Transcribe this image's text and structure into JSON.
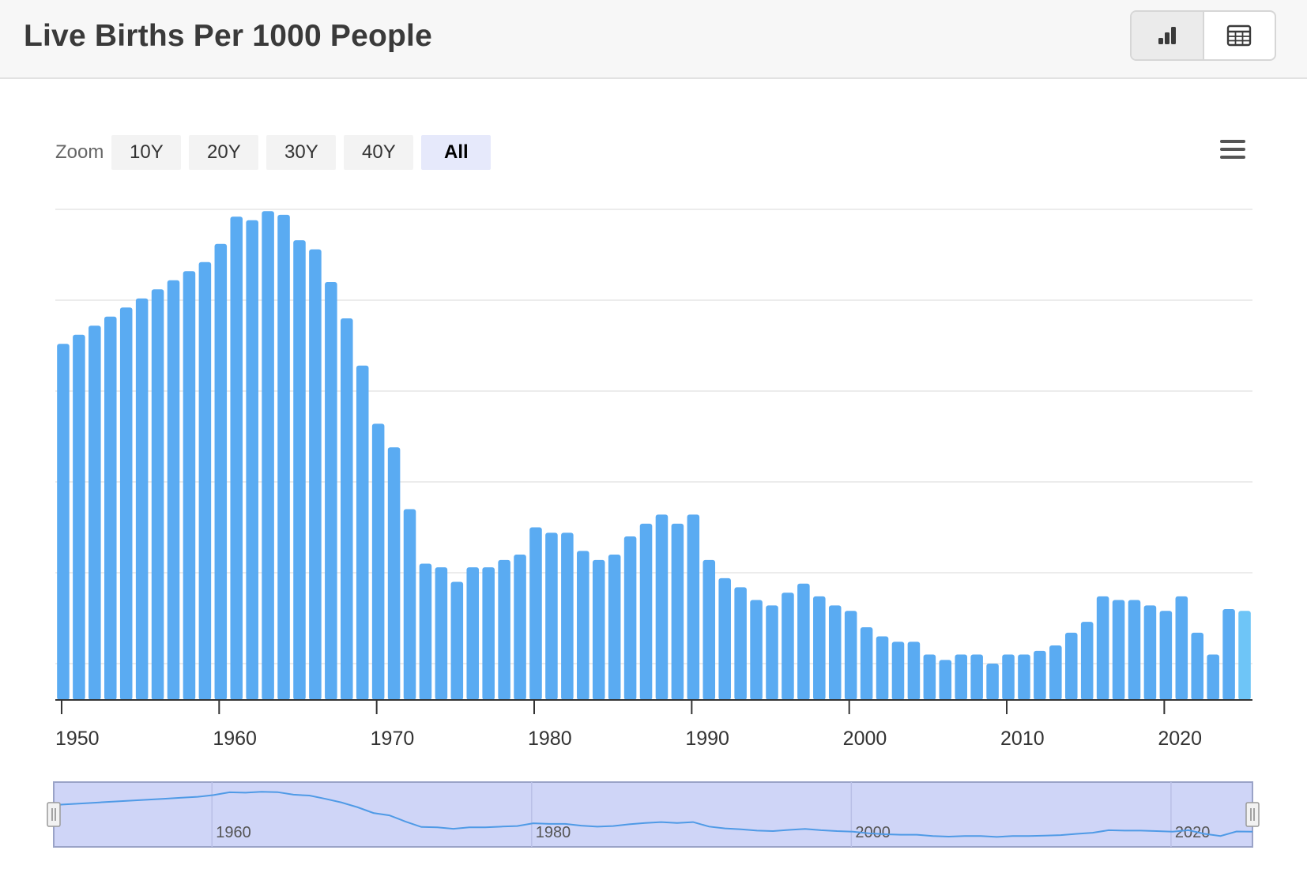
{
  "header": {
    "title": "Live Births Per 1000 People",
    "view_toggle": [
      {
        "icon": "bar-chart-icon",
        "active": true
      },
      {
        "icon": "table-icon",
        "active": false
      }
    ]
  },
  "zoom": {
    "label": "Zoom",
    "options": [
      "10Y",
      "20Y",
      "30Y",
      "40Y",
      "All"
    ],
    "selected": "All"
  },
  "menu_icon": "hamburger-menu-icon",
  "colors": {
    "bar": "#5aabf2",
    "bar_last": "#6ec5f7",
    "grid": "#e6e6e6",
    "navigator_fill": "#cfd5f7",
    "navigator_line": "#4f9ae6"
  },
  "chart_data": {
    "type": "bar",
    "title": "Live Births Per 1000 People",
    "xlabel": "",
    "ylabel": "",
    "grid": true,
    "x_ticks": [
      1950,
      1960,
      1970,
      1980,
      1990,
      2000,
      2010,
      2020
    ],
    "navigator_ticks": [
      1960,
      1980,
      2000,
      2020
    ],
    "xlim": [
      1950,
      2025
    ],
    "ylim": [
      0,
      27
    ],
    "y_gridlines": [
      2,
      7,
      12,
      17,
      22,
      27
    ],
    "x": [
      1950,
      1951,
      1952,
      1953,
      1954,
      1955,
      1956,
      1957,
      1958,
      1959,
      1960,
      1961,
      1962,
      1963,
      1964,
      1965,
      1966,
      1967,
      1968,
      1969,
      1970,
      1971,
      1972,
      1973,
      1974,
      1975,
      1976,
      1977,
      1978,
      1979,
      1980,
      1981,
      1982,
      1983,
      1984,
      1985,
      1986,
      1987,
      1988,
      1989,
      1990,
      1991,
      1992,
      1993,
      1994,
      1995,
      1996,
      1997,
      1998,
      1999,
      2000,
      2001,
      2002,
      2003,
      2004,
      2005,
      2006,
      2007,
      2008,
      2009,
      2010,
      2011,
      2012,
      2013,
      2014,
      2015,
      2016,
      2017,
      2018,
      2019,
      2020,
      2021,
      2022,
      2023,
      2024,
      2025
    ],
    "values": [
      19.6,
      20.1,
      20.6,
      21.1,
      21.6,
      22.1,
      22.6,
      23.1,
      23.6,
      24.1,
      25.1,
      26.6,
      26.4,
      26.9,
      26.7,
      25.3,
      24.8,
      23.0,
      21.0,
      18.4,
      15.2,
      13.9,
      10.5,
      7.5,
      7.3,
      6.5,
      7.3,
      7.3,
      7.7,
      8.0,
      9.5,
      9.2,
      9.2,
      8.2,
      7.7,
      8.0,
      9.0,
      9.7,
      10.2,
      9.7,
      10.2,
      7.7,
      6.7,
      6.2,
      5.5,
      5.2,
      5.9,
      6.4,
      5.7,
      5.2,
      4.9,
      4.0,
      3.5,
      3.2,
      3.2,
      2.5,
      2.2,
      2.5,
      2.5,
      2.0,
      2.5,
      2.5,
      2.7,
      3.0,
      3.7,
      4.3,
      5.7,
      5.5,
      5.5,
      5.2,
      4.9,
      5.7,
      3.7,
      2.5,
      5.0,
      4.9
    ]
  }
}
